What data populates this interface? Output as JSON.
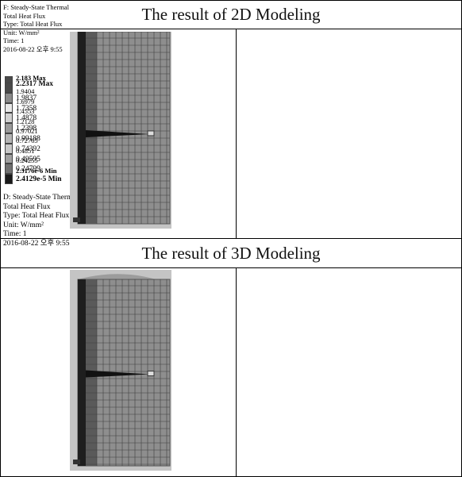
{
  "sections": [
    {
      "heading": "The result of 2D Modeling",
      "legend": {
        "title": "F: Steady-State Thermal",
        "lines": [
          "Total Heat Flux",
          "Type: Total Heat Flux",
          "Unit: W/mm²",
          "Time: 1",
          "2016-08-22 오후 9:55"
        ],
        "entries": [
          "2.183 Max",
          "1.9404",
          "1.6979",
          "1.4553",
          "1.2128",
          "0.97021",
          "0.72765",
          "0.4851",
          "0.24255",
          "2.3176e-6 Min"
        ]
      }
    },
    {
      "heading": "The result of 3D Modeling",
      "legend": {
        "title": "D: Steady-State Thermal",
        "lines": [
          "Total Heat Flux",
          "Type: Total Heat Flux",
          "Unit: W/mm²",
          "Time: 1",
          "2016-08-22 오후 9:55"
        ],
        "entries": [
          "2.2317 Max",
          "1.9837",
          "1.7358",
          "1.4878",
          "1.2398",
          "0.99188",
          "0.74392",
          "0.49595",
          "0.24799",
          "2.4129e-5 Min"
        ]
      }
    }
  ]
}
